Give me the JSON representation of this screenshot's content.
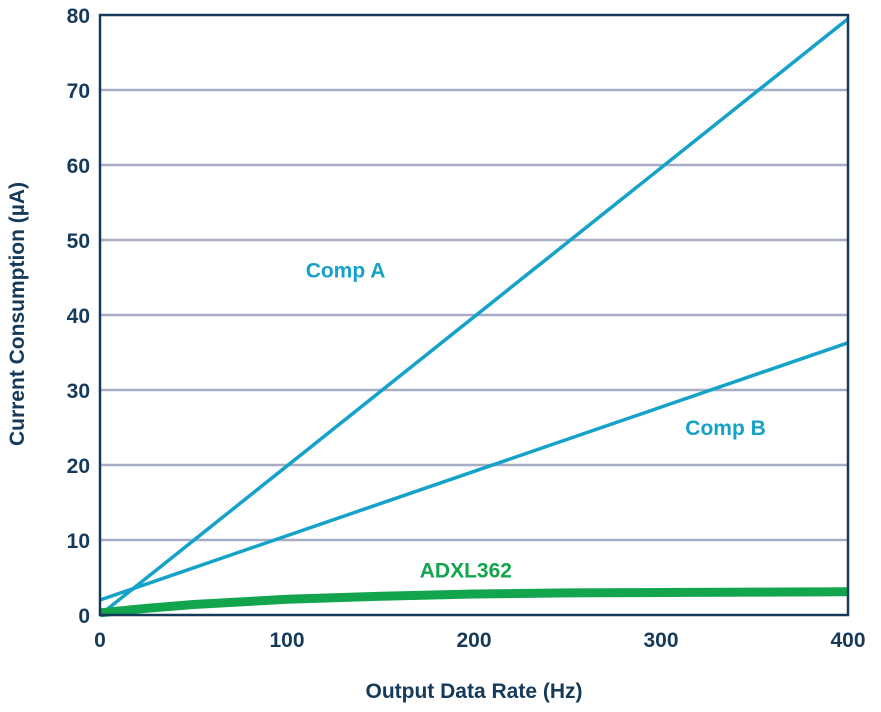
{
  "chart_data": {
    "type": "line",
    "title": "",
    "xlabel": "Output Data Rate (Hz)",
    "ylabel": "Current Consumption (µA)",
    "xlim": [
      0,
      400
    ],
    "ylim": [
      0,
      80
    ],
    "x_ticks": [
      "0",
      "100",
      "200",
      "300",
      "400"
    ],
    "y_ticks": [
      "0",
      "10",
      "20",
      "30",
      "40",
      "50",
      "60",
      "70",
      "80"
    ],
    "grid": "horizontal",
    "legend": "none (series labelled inline)",
    "colors": {
      "axis": "#163a5a",
      "grid": "#a7adc4",
      "comp": "#14a2c8",
      "adxl": "#12a54e"
    },
    "series": [
      {
        "name": "Comp A",
        "color": "#14a2c8",
        "points": [
          [
            0,
            0
          ],
          [
            400,
            79.5
          ]
        ]
      },
      {
        "name": "Comp B",
        "color": "#14a2c8",
        "points": [
          [
            0,
            2
          ],
          [
            400,
            36.3
          ]
        ]
      },
      {
        "name": "ADXL362",
        "color": "#12a54e",
        "points": [
          [
            0,
            0.3
          ],
          [
            25,
            0.9
          ],
          [
            50,
            1.4
          ],
          [
            100,
            2.1
          ],
          [
            150,
            2.5
          ],
          [
            200,
            2.8
          ],
          [
            250,
            2.95
          ],
          [
            300,
            3.0
          ],
          [
            350,
            3.05
          ],
          [
            400,
            3.1
          ]
        ]
      }
    ]
  }
}
